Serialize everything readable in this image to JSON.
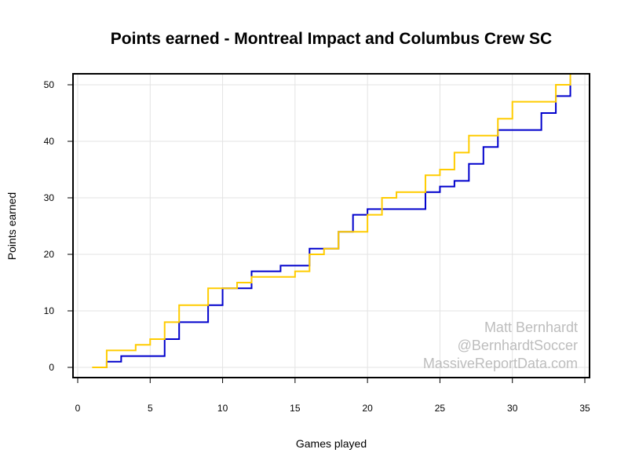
{
  "chart_data": {
    "type": "line",
    "step": true,
    "title": "Points earned - Montreal Impact and Columbus Crew SC",
    "xlabel": "Games played",
    "ylabel": "Points earned",
    "xlim": [
      0,
      35
    ],
    "ylim": [
      0,
      52
    ],
    "x_ticks": [
      0,
      5,
      10,
      15,
      20,
      25,
      30,
      35
    ],
    "y_ticks": [
      0,
      10,
      20,
      30,
      40,
      50
    ],
    "grid": true,
    "series": [
      {
        "color": "#0000cc",
        "x": [
          1,
          2,
          3,
          4,
          5,
          6,
          7,
          8,
          9,
          10,
          11,
          12,
          13,
          14,
          15,
          16,
          17,
          18,
          19,
          20,
          21,
          22,
          23,
          24,
          25,
          26,
          27,
          28,
          29,
          30,
          31,
          32,
          33,
          34
        ],
        "values": [
          0,
          1,
          2,
          2,
          2,
          5,
          8,
          8,
          11,
          14,
          14,
          17,
          17,
          18,
          18,
          21,
          21,
          24,
          27,
          28,
          28,
          28,
          28,
          31,
          32,
          33,
          36,
          39,
          42,
          42,
          42,
          45,
          48,
          51
        ]
      },
      {
        "color": "#ffcc00",
        "x": [
          1,
          2,
          3,
          4,
          5,
          6,
          7,
          8,
          9,
          10,
          11,
          12,
          13,
          14,
          15,
          16,
          17,
          18,
          19,
          20,
          21,
          22,
          23,
          24,
          25,
          26,
          27,
          28,
          29,
          30,
          31,
          32,
          33,
          34
        ],
        "values": [
          0,
          3,
          3,
          4,
          5,
          8,
          11,
          11,
          14,
          14,
          15,
          16,
          16,
          16,
          17,
          20,
          21,
          24,
          24,
          27,
          30,
          31,
          31,
          34,
          35,
          38,
          41,
          41,
          44,
          47,
          47,
          47,
          50,
          52
        ]
      }
    ],
    "annotations": [
      "Matt Bernhardt",
      "@BernhardtSoccer",
      "MassiveReportData.com"
    ]
  }
}
